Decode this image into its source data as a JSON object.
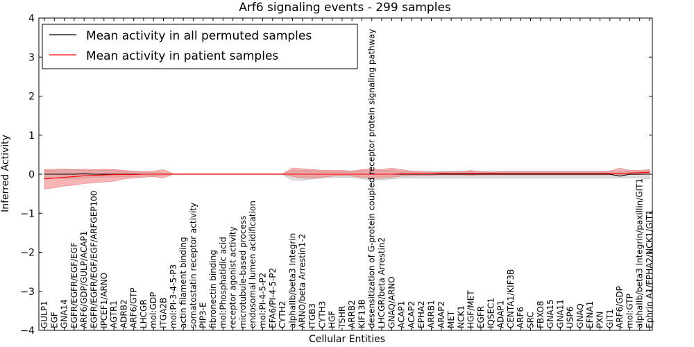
{
  "chart_data": {
    "type": "line",
    "title": "Arf6 signaling events - 299 samples",
    "xlabel": "Cellular Entities",
    "ylabel": "Inferred Activity",
    "ylim": [
      -4,
      4
    ],
    "yticks": [
      4,
      3,
      2,
      1,
      0,
      -1,
      -2,
      -3,
      -4
    ],
    "ytick_labels": [
      "4",
      "3",
      "2",
      "1",
      "0",
      "−1",
      "−2",
      "−3",
      "−4"
    ],
    "legend": {
      "placement": "top-left",
      "entries": [
        "Mean activity in all permuted samples",
        "Mean activity in patient samples"
      ]
    },
    "colors": {
      "permuted": "#000000",
      "patient": "#ff0000",
      "patient_band": "#f07878",
      "permuted_band": "#b4b4b4"
    },
    "categories": [
      "GULP1",
      "EGF",
      "GNA14",
      "EGFR/EGFR/EGF/EGF",
      "ARF6/GDP/GULP/ACAP1",
      "EGFR/EGFR/EGF/EGF/ARFGEP100",
      "IPCEF1/ARNO",
      "AGTR1",
      "ADRB2",
      "ARF6/GTP",
      "LHCGR",
      "mol:GDP",
      "ITGA2B",
      "mol:PI-3-4-5-P3",
      "actin filament binding",
      "somatostatin receptor activity",
      "PIP3-E",
      "fibronectin binding",
      "mol:Phosphatidic acid",
      "receptor agonist activity",
      "microtubule-based process",
      "endosomal lumen acidification",
      "mol:PI-4-5-P2",
      "EFA6/PI-4-5-P2",
      "CYTH2",
      "alphaIIb/beta3 Integrin",
      "ARNO/beta Arrestin1-2",
      "ITGB3",
      "CYTH3",
      "HGF",
      "TSHR",
      "ARRB2",
      "KIF13B",
      "desensitization of G-protein coupled receptor protein signaling pathway",
      "LHCGR/beta Arrestin2",
      "GNAQ/ARNO",
      "ACAP1",
      "ACAP2",
      "EPHA2",
      "ARRB1",
      "ARAP2",
      "MET",
      "NCK1",
      "HGF/MET",
      "EGFR",
      "IQSEC1",
      "ADAP1",
      "CENTA1/KIF3B",
      "ARF6",
      "SRC",
      "FBXO8",
      "GNA15",
      "GNA11",
      "USP6",
      "GNAQ",
      "EFNA1",
      "PXN",
      "GIT1",
      "ARF6/GDP",
      "mol:GTP",
      "alphaIIb/beta3 Integrin/paxillin/GIT1",
      "Ephrin A1/EPHA2/NCK1/GIT1"
    ],
    "series": [
      {
        "name": "Mean activity in all permuted samples",
        "values": [
          0,
          0,
          0,
          0,
          0.01,
          0,
          0,
          0,
          0,
          0,
          0,
          0,
          0,
          0,
          0,
          0,
          0,
          0,
          0,
          0,
          0,
          0,
          0,
          0,
          0,
          0,
          0,
          0,
          0,
          0,
          0,
          0,
          0,
          0,
          0,
          0,
          0,
          0,
          0,
          0,
          0,
          0,
          0,
          0,
          0,
          0,
          0,
          0,
          0,
          0,
          0,
          0,
          0,
          0,
          0,
          0,
          0,
          0,
          -0.05,
          0,
          0,
          0
        ],
        "band_low": [
          -0.1,
          -0.1,
          -0.12,
          -0.12,
          -0.1,
          -0.08,
          -0.08,
          -0.08,
          -0.06,
          -0.06,
          -0.05,
          -0.05,
          -0.03,
          -0.01,
          -0.01,
          -0.01,
          -0.01,
          -0.01,
          -0.01,
          -0.01,
          -0.01,
          -0.01,
          -0.01,
          -0.01,
          -0.01,
          -0.15,
          -0.15,
          -0.12,
          -0.1,
          -0.08,
          -0.08,
          -0.08,
          -0.12,
          -0.14,
          -0.14,
          -0.12,
          -0.1,
          -0.1,
          -0.1,
          -0.1,
          -0.1,
          -0.1,
          -0.1,
          -0.1,
          -0.1,
          -0.1,
          -0.1,
          -0.1,
          -0.1,
          -0.1,
          -0.1,
          -0.1,
          -0.1,
          -0.1,
          -0.1,
          -0.1,
          -0.1,
          -0.1,
          -0.1,
          -0.1,
          -0.1,
          -0.12
        ],
        "band_high": [
          0.1,
          0.1,
          0.12,
          0.12,
          0.1,
          0.1,
          0.1,
          0.1,
          0.08,
          0.08,
          0.06,
          0.05,
          0.03,
          0.01,
          0.01,
          0.01,
          0.01,
          0.01,
          0.01,
          0.01,
          0.01,
          0.01,
          0.01,
          0.01,
          0.01,
          0.1,
          0.1,
          0.1,
          0.08,
          0.06,
          0.06,
          0.06,
          0.1,
          0.1,
          0.1,
          0.1,
          0.08,
          0.08,
          0.08,
          0.08,
          0.08,
          0.08,
          0.08,
          0.08,
          0.08,
          0.08,
          0.08,
          0.08,
          0.08,
          0.08,
          0.08,
          0.08,
          0.08,
          0.08,
          0.08,
          0.08,
          0.08,
          0.08,
          0.08,
          0.08,
          0.08,
          0.1
        ]
      },
      {
        "name": "Mean activity in patient samples",
        "values": [
          -0.12,
          -0.1,
          -0.08,
          -0.06,
          -0.04,
          -0.03,
          -0.02,
          -0.01,
          -0.01,
          -0.01,
          0,
          0,
          0,
          0,
          0,
          0,
          0,
          0,
          0,
          0,
          0,
          0,
          0,
          0,
          0,
          0,
          0,
          0,
          0,
          0,
          0,
          0,
          0,
          0,
          0,
          0,
          0.01,
          0.01,
          0.01,
          0.01,
          0.02,
          0.02,
          0.02,
          0.02,
          0.02,
          0.02,
          0.02,
          0.02,
          0.02,
          0.02,
          0.02,
          0.02,
          0.02,
          0.02,
          0.02,
          0.02,
          0.02,
          0.02,
          0.02,
          0.03,
          0.04,
          0.05
        ],
        "band_low": [
          -0.38,
          -0.35,
          -0.3,
          -0.28,
          -0.24,
          -0.22,
          -0.2,
          -0.18,
          -0.12,
          -0.1,
          -0.08,
          -0.06,
          -0.1,
          0,
          0,
          0,
          0,
          0,
          0,
          0,
          0,
          0,
          0,
          0,
          0,
          -0.06,
          -0.1,
          -0.1,
          -0.08,
          -0.05,
          -0.04,
          -0.05,
          -0.08,
          -0.1,
          -0.1,
          -0.08,
          -0.05,
          -0.04,
          -0.03,
          -0.03,
          -0.02,
          -0.02,
          -0.02,
          -0.03,
          -0.02,
          -0.02,
          -0.02,
          -0.02,
          -0.02,
          -0.02,
          -0.02,
          -0.02,
          -0.02,
          -0.02,
          -0.02,
          -0.02,
          -0.02,
          -0.02,
          -0.02,
          -0.01,
          -0.01,
          0
        ],
        "band_high": [
          0.12,
          0.13,
          0.13,
          0.12,
          0.13,
          0.12,
          0.13,
          0.12,
          0.1,
          0.08,
          0.06,
          0.08,
          0.12,
          0.01,
          0.01,
          0.01,
          0.01,
          0.01,
          0.01,
          0.01,
          0.01,
          0.01,
          0.01,
          0.01,
          0.01,
          0.16,
          0.14,
          0.12,
          0.1,
          0.1,
          0.1,
          0.08,
          0.12,
          0.14,
          0.12,
          0.16,
          0.12,
          0.08,
          0.06,
          0.05,
          0.05,
          0.06,
          0.06,
          0.1,
          0.06,
          0.05,
          0.06,
          0.06,
          0.06,
          0.06,
          0.06,
          0.06,
          0.06,
          0.06,
          0.06,
          0.06,
          0.06,
          0.08,
          0.16,
          0.1,
          0.1,
          0.12
        ]
      }
    ]
  }
}
